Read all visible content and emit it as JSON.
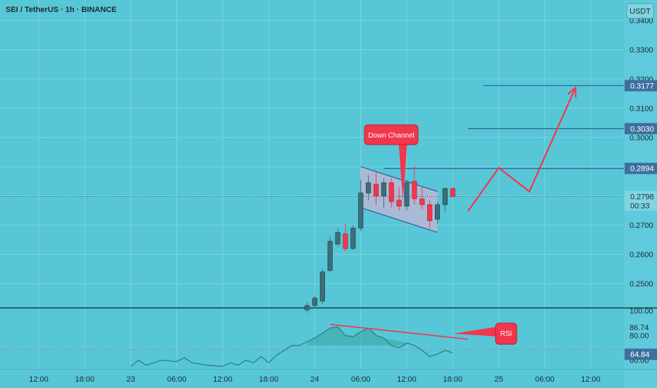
{
  "header": {
    "title": "SEI / TetherUS · 1h · BINANCE",
    "currency": "USDT"
  },
  "colors": {
    "background": "#57c6d6",
    "up": "#3d6f7a",
    "down": "#f2364d",
    "level_line": "#2c5aa0",
    "price_tag": "#3f6f9e",
    "channel_fill": "#c6b4d6",
    "channel_stroke": "#2c5aa0",
    "rsi_fill": "#3da6a3",
    "rsi_line": "#2e7a7a",
    "separator": "#1b3a4a"
  },
  "chart_data": {
    "type": "candlestick",
    "symbol": "SEI / TetherUS",
    "interval": "1h",
    "exchange": "BINANCE",
    "price_axis": {
      "ylim": [
        0.2418,
        0.347
      ],
      "ticks": [
        "0.3400",
        "0.3300",
        "0.3200",
        "0.3100",
        "0.3000",
        "0.2900",
        "0.2800",
        "0.2700",
        "0.2600",
        "0.2500"
      ]
    },
    "time_axis": {
      "ticks": [
        {
          "label": "12:00",
          "index": 0
        },
        {
          "label": "18:00",
          "index": 6
        },
        {
          "label": "23",
          "index": 12
        },
        {
          "label": "06:00",
          "index": 18
        },
        {
          "label": "12:00",
          "index": 24
        },
        {
          "label": "18:00",
          "index": 30
        },
        {
          "label": "24",
          "index": 36
        },
        {
          "label": "06:00",
          "index": 42
        },
        {
          "label": "12:00",
          "index": 48
        },
        {
          "label": "18:00",
          "index": 54
        },
        {
          "label": "25",
          "index": 60
        },
        {
          "label": "06:00",
          "index": 66
        },
        {
          "label": "12:00",
          "index": 72
        }
      ]
    },
    "candles": [
      {
        "index": 35,
        "open": 0.241,
        "high": 0.2435,
        "low": 0.24,
        "close": 0.2425
      },
      {
        "index": 36,
        "open": 0.2425,
        "high": 0.246,
        "low": 0.242,
        "close": 0.245
      },
      {
        "index": 37,
        "open": 0.244,
        "high": 0.255,
        "low": 0.243,
        "close": 0.254
      },
      {
        "index": 38,
        "open": 0.2545,
        "high": 0.266,
        "low": 0.254,
        "close": 0.2645
      },
      {
        "index": 39,
        "open": 0.2635,
        "high": 0.269,
        "low": 0.2625,
        "close": 0.2675
      },
      {
        "index": 40,
        "open": 0.267,
        "high": 0.2705,
        "low": 0.261,
        "close": 0.262
      },
      {
        "index": 41,
        "open": 0.262,
        "high": 0.27,
        "low": 0.2615,
        "close": 0.269
      },
      {
        "index": 42,
        "open": 0.269,
        "high": 0.2855,
        "low": 0.268,
        "close": 0.281
      },
      {
        "index": 43,
        "open": 0.281,
        "high": 0.287,
        "low": 0.2785,
        "close": 0.2845
      },
      {
        "index": 44,
        "open": 0.284,
        "high": 0.288,
        "low": 0.277,
        "close": 0.28
      },
      {
        "index": 45,
        "open": 0.28,
        "high": 0.286,
        "low": 0.276,
        "close": 0.2845
      },
      {
        "index": 46,
        "open": 0.2845,
        "high": 0.286,
        "low": 0.276,
        "close": 0.278
      },
      {
        "index": 47,
        "open": 0.2785,
        "high": 0.283,
        "low": 0.275,
        "close": 0.2765
      },
      {
        "index": 48,
        "open": 0.2765,
        "high": 0.2855,
        "low": 0.275,
        "close": 0.2845
      },
      {
        "index": 49,
        "open": 0.285,
        "high": 0.2905,
        "low": 0.277,
        "close": 0.279
      },
      {
        "index": 50,
        "open": 0.279,
        "high": 0.283,
        "low": 0.2755,
        "close": 0.277
      },
      {
        "index": 51,
        "open": 0.277,
        "high": 0.2785,
        "low": 0.269,
        "close": 0.2715
      },
      {
        "index": 52,
        "open": 0.272,
        "high": 0.278,
        "low": 0.2705,
        "close": 0.277
      },
      {
        "index": 53,
        "open": 0.277,
        "high": 0.283,
        "low": 0.2745,
        "close": 0.2825
      },
      {
        "index": 54,
        "open": 0.2825,
        "high": 0.283,
        "low": 0.2795,
        "close": 0.2798
      }
    ],
    "levels": [
      {
        "price": 0.3177,
        "label": "0.3177",
        "from_index": 58
      },
      {
        "price": 0.303,
        "label": "0.3030",
        "from_index": 56
      },
      {
        "price": 0.2894,
        "label": "0.2894",
        "from_index": 45
      }
    ],
    "last_price": {
      "price": 0.2798,
      "label": "0.2798",
      "countdown": "00:33"
    },
    "channel": {
      "label": "Down Channel",
      "points": [
        {
          "index": 42,
          "price": 0.29
        },
        {
          "index": 52,
          "price": 0.2815
        },
        {
          "index": 52,
          "price": 0.2675
        },
        {
          "index": 42,
          "price": 0.276
        }
      ]
    },
    "projection": [
      {
        "index": 56,
        "price": 0.2748
      },
      {
        "index": 60,
        "price": 0.2896
      },
      {
        "index": 64,
        "price": 0.2815
      },
      {
        "index": 70,
        "price": 0.317
      }
    ],
    "rsi": {
      "label": "RSI",
      "ylim": [
        53,
        102
      ],
      "ticks": [
        "100.00",
        "86.74",
        "80.00",
        "60.00"
      ],
      "last": "64.84",
      "last_value": 64.84,
      "band_value": 68.5,
      "series": [
        {
          "index": 12,
          "value": 55
        },
        {
          "index": 13,
          "value": 60
        },
        {
          "index": 14,
          "value": 56
        },
        {
          "index": 16,
          "value": 60
        },
        {
          "index": 18,
          "value": 59
        },
        {
          "index": 19,
          "value": 62
        },
        {
          "index": 20,
          "value": 58
        },
        {
          "index": 22,
          "value": 56
        },
        {
          "index": 24,
          "value": 55
        },
        {
          "index": 25,
          "value": 58
        },
        {
          "index": 26,
          "value": 56
        },
        {
          "index": 27,
          "value": 60
        },
        {
          "index": 28,
          "value": 58
        },
        {
          "index": 29,
          "value": 63
        },
        {
          "index": 30,
          "value": 58
        },
        {
          "index": 31,
          "value": 64
        },
        {
          "index": 32,
          "value": 68
        },
        {
          "index": 33,
          "value": 72
        },
        {
          "index": 34,
          "value": 72
        },
        {
          "index": 35,
          "value": 75
        },
        {
          "index": 36,
          "value": 78
        },
        {
          "index": 37,
          "value": 82
        },
        {
          "index": 38,
          "value": 86
        },
        {
          "index": 39,
          "value": 87
        },
        {
          "index": 40,
          "value": 80
        },
        {
          "index": 41,
          "value": 79
        },
        {
          "index": 42,
          "value": 83
        },
        {
          "index": 43,
          "value": 86
        },
        {
          "index": 44,
          "value": 80
        },
        {
          "index": 45,
          "value": 78
        },
        {
          "index": 46,
          "value": 72
        },
        {
          "index": 47,
          "value": 70
        },
        {
          "index": 48,
          "value": 74
        },
        {
          "index": 49,
          "value": 72
        },
        {
          "index": 50,
          "value": 68
        },
        {
          "index": 51,
          "value": 63
        },
        {
          "index": 52,
          "value": 65
        },
        {
          "index": 53,
          "value": 68
        },
        {
          "index": 54,
          "value": 66
        }
      ],
      "trend": [
        {
          "index": 38,
          "value": 89
        },
        {
          "index": 56,
          "value": 77
        }
      ]
    }
  }
}
